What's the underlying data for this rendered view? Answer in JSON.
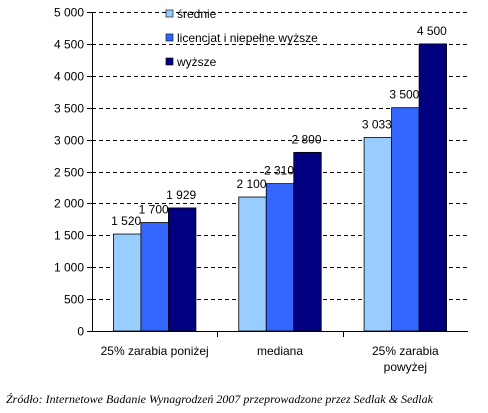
{
  "chart_data": {
    "type": "bar",
    "categories": [
      [
        "25% zarabia poniżej"
      ],
      [
        "mediana"
      ],
      [
        "25% zarabia",
        "powyżej"
      ]
    ],
    "series": [
      {
        "name": "średnie",
        "color": "#99ccff",
        "values": [
          1520,
          2100,
          3033
        ],
        "labels": [
          "1 520",
          "2 100",
          "3 033"
        ]
      },
      {
        "name": "licencjat i niepełne wyższe",
        "color": "#3366ff",
        "values": [
          1700,
          2310,
          3500
        ],
        "labels": [
          "1 700",
          "2 310",
          "3 500"
        ]
      },
      {
        "name": "wyższe",
        "color": "#000080",
        "values": [
          1929,
          2800,
          4500
        ],
        "labels": [
          "1 929",
          "2 800",
          "4 500"
        ]
      }
    ],
    "ylim": [
      0,
      5000
    ],
    "yticks": [
      0,
      500,
      1000,
      1500,
      2000,
      2500,
      3000,
      3500,
      4000,
      4500,
      5000
    ],
    "ytick_labels": [
      "0",
      "500",
      "1 000",
      "1 500",
      "2 000",
      "2 500",
      "3 000",
      "3 500",
      "4 000",
      "4 500",
      "5 000"
    ],
    "grid": true,
    "legend_position": "top-left",
    "title": "",
    "xlabel": "",
    "ylabel": ""
  },
  "source": "Źródło: Internetowe Badanie Wynagrodzeń 2007 przeprowadzone przez Sedlak & Sedlak"
}
